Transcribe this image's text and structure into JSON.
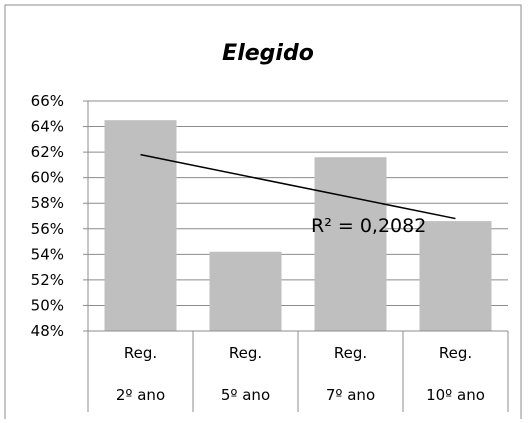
{
  "chart_data": {
    "type": "bar",
    "title": "Elegido",
    "categories": [
      [
        "Reg.",
        "2º ano"
      ],
      [
        "Reg.",
        "5º ano"
      ],
      [
        "Reg.",
        "7º ano"
      ],
      [
        "Reg.",
        "10º ano"
      ]
    ],
    "values": [
      0.645,
      0.542,
      0.616,
      0.566
    ],
    "ylim": [
      0.48,
      0.66
    ],
    "ytick_step": 0.02,
    "ytick_labels": [
      "48%",
      "50%",
      "52%",
      "54%",
      "56%",
      "58%",
      "60%",
      "62%",
      "64%",
      "66%"
    ],
    "grid": true,
    "bar_color": "#bfbfbf",
    "trendline": {
      "type": "linear",
      "start": 0.618,
      "end": 0.568,
      "r2_label": "R² = 0,2082"
    }
  }
}
